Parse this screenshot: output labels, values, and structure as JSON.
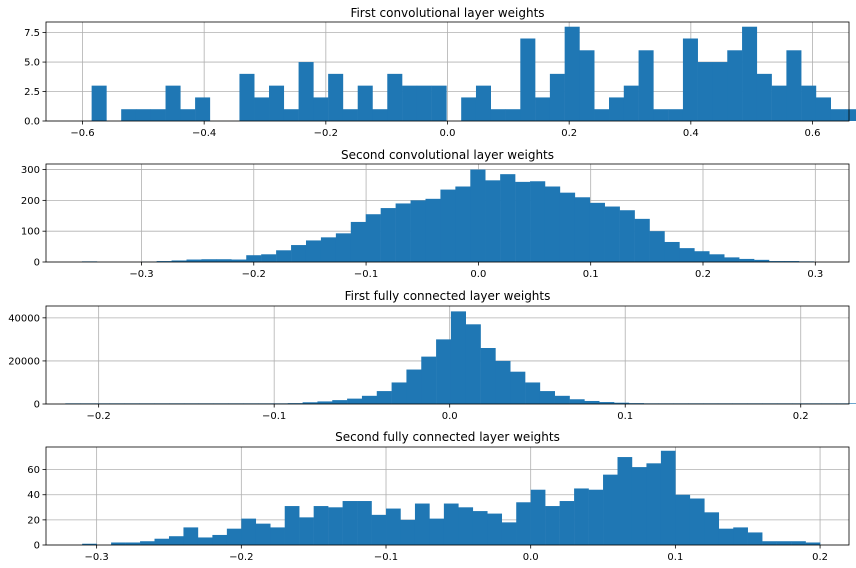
{
  "chart_data": [
    {
      "type": "bar",
      "title": "First convolutional layer weights",
      "xlabel": "",
      "ylabel": "",
      "xlim": [
        -0.66,
        0.66
      ],
      "ylim": [
        0,
        8.4
      ],
      "grid": true,
      "bar_color": "#1f77b4",
      "xticks": [
        -0.6,
        -0.4,
        -0.2,
        0.0,
        0.2,
        0.4,
        0.6
      ],
      "xtick_labels": [
        "−0.6",
        "−0.4",
        "−0.2",
        "0.0",
        "0.2",
        "0.4",
        "0.6"
      ],
      "yticks": [
        0.0,
        2.5,
        5.0,
        7.5
      ],
      "ytick_labels": [
        "0.0",
        "2.5",
        "5.0",
        "7.5"
      ],
      "bins": {
        "start": -0.585,
        "width": 0.0243,
        "counts": [
          3,
          0,
          1,
          1,
          1,
          3,
          1,
          2,
          0,
          0,
          4,
          2,
          3,
          1,
          5,
          2,
          4,
          1,
          3,
          1,
          4,
          3,
          3,
          3,
          0,
          2,
          3,
          1,
          1,
          7,
          2,
          4,
          8,
          6,
          1,
          2,
          3,
          6,
          1,
          1,
          7,
          5,
          5,
          6,
          8,
          4,
          3,
          6,
          3,
          2,
          1,
          1,
          0,
          1
        ]
      }
    },
    {
      "type": "bar",
      "title": "Second convolutional layer weights",
      "xlabel": "",
      "ylabel": "",
      "xlim": [
        -0.385,
        0.33
      ],
      "ylim": [
        0,
        318
      ],
      "grid": true,
      "bar_color": "#1f77b4",
      "xticks": [
        -0.3,
        -0.2,
        -0.1,
        0.0,
        0.1,
        0.2,
        0.3
      ],
      "xtick_labels": [
        "−0.3",
        "−0.2",
        "−0.1",
        "0.0",
        "0.1",
        "0.2",
        "0.3"
      ],
      "yticks": [
        0,
        100,
        200,
        300
      ],
      "ytick_labels": [
        "0",
        "100",
        "200",
        "300"
      ],
      "bins": {
        "start": -0.353,
        "width": 0.0133,
        "counts": [
          2,
          0,
          0,
          0,
          1,
          3,
          5,
          8,
          9,
          9,
          8,
          22,
          25,
          38,
          55,
          70,
          80,
          93,
          130,
          155,
          175,
          190,
          200,
          205,
          235,
          245,
          300,
          265,
          285,
          260,
          262,
          245,
          225,
          210,
          192,
          180,
          168,
          140,
          100,
          65,
          45,
          35,
          25,
          15,
          10,
          7,
          3,
          3,
          2,
          0,
          0,
          0,
          1
        ]
      }
    },
    {
      "type": "bar",
      "title": "First fully connected layer weights",
      "xlabel": "",
      "ylabel": "",
      "xlim": [
        -0.23,
        0.2275
      ],
      "ylim": [
        0,
        45500
      ],
      "grid": true,
      "bar_color": "#1f77b4",
      "xticks": [
        -0.2,
        -0.1,
        0.0,
        0.1,
        0.2
      ],
      "xtick_labels": [
        "−0.2",
        "−0.1",
        "0.0",
        "0.1",
        "0.2"
      ],
      "yticks": [
        0,
        20000,
        40000
      ],
      "ytick_labels": [
        "0",
        "20000",
        "40000"
      ],
      "bins": {
        "start": -0.219,
        "width": 0.00845,
        "counts": [
          300,
          300,
          300,
          300,
          300,
          300,
          300,
          300,
          300,
          300,
          300,
          300,
          300,
          300,
          300,
          400,
          800,
          1200,
          1800,
          2500,
          3800,
          6000,
          10000,
          16000,
          22000,
          30000,
          43000,
          37000,
          26000,
          20000,
          15000,
          10000,
          6000,
          3800,
          2200,
          1400,
          900,
          600,
          400,
          300,
          300,
          300,
          300,
          300,
          300,
          300,
          300,
          300,
          300,
          300,
          300,
          300,
          300,
          300,
          1500
        ]
      }
    },
    {
      "type": "bar",
      "title": "Second fully connected layer weights",
      "xlabel": "",
      "ylabel": "",
      "xlim": [
        -0.335,
        0.22
      ],
      "ylim": [
        0,
        78
      ],
      "grid": true,
      "bar_color": "#1f77b4",
      "xticks": [
        -0.3,
        -0.2,
        -0.1,
        0.0,
        0.1,
        0.2
      ],
      "xtick_labels": [
        "−0.3",
        "−0.2",
        "−0.1",
        "0.0",
        "0.1",
        "0.2"
      ],
      "yticks": [
        0,
        20,
        40,
        60
      ],
      "ytick_labels": [
        "0",
        "20",
        "40",
        "60"
      ],
      "bins": {
        "start": -0.31,
        "width": 0.01,
        "counts": [
          1,
          0,
          2,
          2,
          3,
          5,
          7,
          14,
          6,
          8,
          13,
          21,
          17,
          14,
          31,
          22,
          31,
          30,
          35,
          35,
          24,
          29,
          20,
          33,
          21,
          33,
          30,
          27,
          25,
          18,
          34,
          44,
          31,
          35,
          45,
          44,
          56,
          70,
          62,
          65,
          75,
          40,
          37,
          26,
          13,
          14,
          10,
          3,
          3,
          3,
          2
        ]
      }
    }
  ]
}
